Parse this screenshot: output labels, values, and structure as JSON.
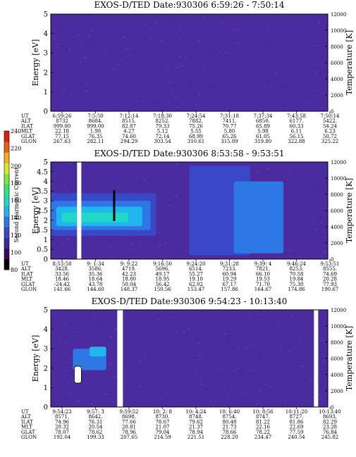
{
  "colorbar": {
    "label": "Second Harmonic Current",
    "ticks": [
      "240",
      "220",
      "200",
      "180",
      "160",
      "140",
      "120",
      "100",
      "80"
    ],
    "colors": [
      "#000000",
      "#3a0a5e",
      "#3e2a9c",
      "#3a48c8",
      "#2e78e6",
      "#22b6ee",
      "#20d8c8",
      "#36e07a",
      "#7ce83a",
      "#d8e82a",
      "#f0b020",
      "#e86018",
      "#d82010"
    ]
  },
  "chart_data": [
    {
      "type": "heatmap",
      "title": "EXOS-D/TED   Date:930306  6:59:26 - 7:50:14",
      "ylabel": "Energy [eV]",
      "y2label": "Temperature [K]",
      "ylim": [
        0,
        5
      ],
      "y2lim": [
        0,
        12000
      ],
      "yticks": [
        "0",
        "1",
        "2",
        "3",
        "4",
        "5"
      ],
      "y2ticks": [
        "0",
        "2000",
        "4000",
        "6000",
        "8000",
        "10000",
        "12000"
      ],
      "background": "#4a2c9e",
      "blobs": [],
      "table": {
        "rows": [
          "UT",
          "ALT",
          "ILAT",
          "MLT",
          "GLAT",
          "GLON"
        ],
        "cols": [
          [
            "6:59:26",
            "8732",
            "999.00",
            "22.18",
            "77.15",
            "267.63"
          ],
          [
            "7:5:50",
            "8684.",
            "999.00",
            "1.98",
            "76.35",
            "282.11"
          ],
          [
            "7:12:14",
            "8515.",
            "82.87",
            "4.27",
            "74.60",
            "294.29"
          ],
          [
            "7:18:30",
            "8252.",
            "79.33",
            "5.12",
            "72.14",
            "303.54"
          ],
          [
            "7:24:54",
            "7882.",
            "75.26",
            "5.55",
            "68.99",
            "310.61"
          ],
          [
            "7:31:18",
            "7411.",
            "70.77",
            "5.80",
            "65.26",
            "315.89"
          ],
          [
            "7:37:34",
            "6850.",
            "65.89",
            "5.98",
            "61.05",
            "319.80"
          ],
          [
            "7:43:58",
            "6177.",
            "60.33",
            "6.11",
            "56.15",
            "322.88"
          ],
          [
            "7:50:14",
            "5422.",
            "54.24",
            "6.23",
            "50.72",
            "325.22"
          ]
        ]
      }
    },
    {
      "type": "heatmap",
      "title": "EXOS-D/TED   Date:930306  8:53:58 - 9:53:51",
      "ylabel": "Energy [eV]",
      "y2label": "Temperature [K]",
      "ylim": [
        0,
        5
      ],
      "y2lim": [
        0,
        12000
      ],
      "yticks": [
        "0",
        "0.5",
        "1",
        "1.5",
        "2",
        "2.5",
        "3",
        "3.5",
        "4",
        "4.5",
        "5"
      ],
      "y2ticks": [
        "0",
        "2000",
        "4000",
        "6000",
        "8000",
        "10000",
        "12000"
      ],
      "background": "#4a2c9e",
      "blobs": [
        {
          "x0": 0.0,
          "x1": 0.38,
          "y0": 1.2,
          "y1": 3.4,
          "color": "#3a48c8"
        },
        {
          "x0": 0.0,
          "x1": 0.36,
          "y0": 1.5,
          "y1": 3.0,
          "color": "#2e78e6"
        },
        {
          "x0": 0.02,
          "x1": 0.33,
          "y0": 1.7,
          "y1": 2.7,
          "color": "#22b6ee"
        },
        {
          "x0": 0.04,
          "x1": 0.28,
          "y0": 1.9,
          "y1": 2.4,
          "color": "#20d8c8"
        },
        {
          "x0": 0.5,
          "x1": 0.72,
          "y0": 0.2,
          "y1": 4.8,
          "color": "#3a48c8"
        },
        {
          "x0": 0.66,
          "x1": 0.84,
          "y0": 0.3,
          "y1": 4.0,
          "color": "#2e78e6"
        }
      ],
      "table": {
        "rows": [
          "UT",
          "ALT",
          "ILAT",
          "MLT",
          "GLAT",
          "GLON"
        ],
        "cols": [
          [
            "8:53:58",
            "3428.",
            "33.56",
            "18.46",
            "-24.42",
            "141.66"
          ],
          [
            "9: 1:34",
            "3586.",
            "35.36",
            "18.64",
            "43.78",
            "144.60"
          ],
          [
            "9: 9:22",
            "4719.",
            "42.23",
            "18.80",
            "50.04",
            "148.37"
          ],
          [
            "9:16:50",
            "5696.",
            "49.17",
            "18.95",
            "56.42",
            "150.56"
          ],
          [
            "9:24:20",
            "6514.",
            "55.27",
            "19.10",
            "62.02",
            "153.47"
          ],
          [
            "9:31:28",
            "7233.",
            "60.94",
            "19.29",
            "67.17",
            "157.86"
          ],
          [
            "9:39: 4",
            "7821.",
            "66.10",
            "19.53",
            "71.70",
            "164.67"
          ],
          [
            "9:46:24",
            "8253.",
            "70.58",
            "19.84",
            "75.30",
            "174.86"
          ],
          [
            "9:53:51",
            "8555.",
            "74.69",
            "20.28",
            "77.93",
            "190.67"
          ]
        ]
      }
    },
    {
      "type": "heatmap",
      "title": "EXOS-D/TED   Date:930306  9:54:23 - 10:13:40",
      "ylabel": "Energy [eV]",
      "y2label": "Temperature [K]",
      "ylim": [
        0,
        5
      ],
      "y2lim": [
        0,
        12000
      ],
      "yticks": [
        "0",
        "1",
        "2",
        "3",
        "4",
        "5"
      ],
      "y2ticks": [
        "0",
        "2000",
        "4000",
        "6000",
        "8000",
        "10000",
        "12000"
      ],
      "background": "#4a2c9e",
      "blobs": [
        {
          "x0": 0.08,
          "x1": 0.2,
          "y0": 1.9,
          "y1": 3.0,
          "color": "#2e78e6"
        },
        {
          "x0": 0.14,
          "x1": 0.2,
          "y0": 2.6,
          "y1": 3.1,
          "color": "#22b6ee"
        }
      ],
      "table": {
        "rows": [
          "UT",
          "ALT",
          "ILAT",
          "MLT",
          "GLAT",
          "GLON"
        ],
        "cols": [
          [
            "9:54:23",
            "8571.",
            "74.96",
            "20.32",
            "78.07",
            "192.04"
          ],
          [
            "9:57: 3",
            "8642.",
            "76.31",
            "20.54",
            "78.62",
            "199.33"
          ],
          [
            "9:59:52",
            "8698.",
            "77.66",
            "20.81",
            "78.96",
            "207.65"
          ],
          [
            "10: 2: 8",
            "8730.",
            "78.67",
            "21.07",
            "79.04",
            "214.59"
          ],
          [
            "10: 4:24",
            "8748.",
            "79.62",
            "21.37",
            "78.94",
            "221.51"
          ],
          [
            "10: 6:40",
            "8754.",
            "80.48",
            "21.73",
            "78.66",
            "228.20"
          ],
          [
            "10: 8:56",
            "8747.",
            "81.22",
            "22.16",
            "78.22",
            "234.47"
          ],
          [
            "10:11:20",
            "8727.",
            "81.86",
            "22.69",
            "77.59",
            "240.54"
          ],
          [
            "10:13:40",
            "8693.",
            "82.29",
            "23.28",
            "76.84",
            "245.82"
          ]
        ]
      }
    }
  ]
}
